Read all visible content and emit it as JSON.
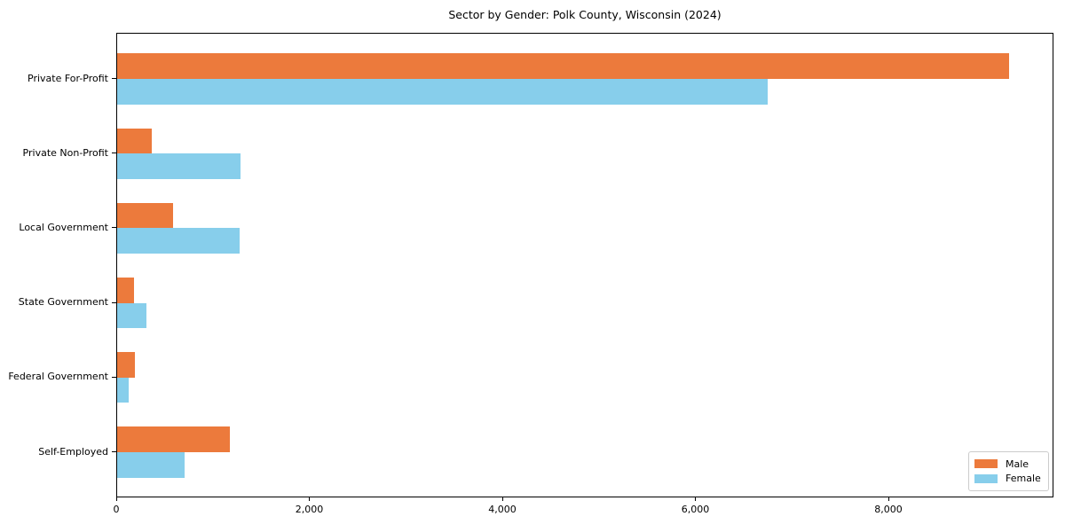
{
  "title": "Sector by Gender: Polk County, Wisconsin (2024)",
  "chart_data": {
    "type": "bar",
    "orientation": "horizontal",
    "title": "Sector by Gender: Polk County, Wisconsin (2024)",
    "categories": [
      "Private For-Profit",
      "Private Non-Profit",
      "Local Government",
      "State Government",
      "Federal Government",
      "Self-Employed"
    ],
    "series": [
      {
        "name": "Male",
        "color": "#ec7a3c",
        "values": [
          9240,
          360,
          580,
          170,
          180,
          1170
        ]
      },
      {
        "name": "Female",
        "color": "#87ceeb",
        "values": [
          6740,
          1280,
          1270,
          300,
          120,
          700
        ]
      }
    ],
    "xlabel": "",
    "ylabel": "",
    "xlim": [
      0,
      9710
    ],
    "xticks": [
      0,
      2000,
      4000,
      6000,
      8000
    ],
    "xtick_labels": [
      "0",
      "2,000",
      "4,000",
      "6,000",
      "8,000"
    ],
    "grid": false,
    "legend_position": "lower right"
  }
}
